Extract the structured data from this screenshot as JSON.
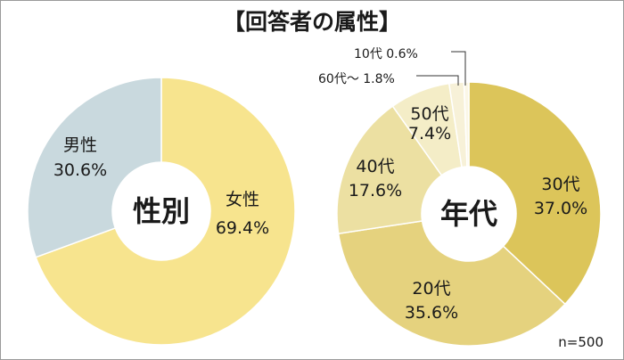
{
  "title": "【回答者の属性】",
  "sample_size": "n=500",
  "chart_data": [
    {
      "type": "pie",
      "donut": true,
      "center_label": "性別",
      "slices": [
        {
          "name": "女性",
          "value": 69.4,
          "label": "69.4%",
          "color": "#f7e48e"
        },
        {
          "name": "男性",
          "value": 30.6,
          "label": "30.6%",
          "color": "#c9d9de"
        }
      ]
    },
    {
      "type": "pie",
      "donut": true,
      "center_label": "年代",
      "slices": [
        {
          "name": "30代",
          "value": 37.0,
          "label": "37.0%",
          "color": "#dcc55a"
        },
        {
          "name": "20代",
          "value": 35.6,
          "label": "35.6%",
          "color": "#e5d27e"
        },
        {
          "name": "40代",
          "value": 17.6,
          "label": "17.6%",
          "color": "#ece0a2"
        },
        {
          "name": "50代",
          "value": 7.4,
          "label": "7.4%",
          "color": "#f4edc7"
        },
        {
          "name": "60代～",
          "value": 1.8,
          "label": "1.8%",
          "color": "#f7f1d8"
        },
        {
          "name": "10代",
          "value": 0.6,
          "label": "0.6%",
          "color": "#fbf7e6"
        }
      ]
    }
  ]
}
